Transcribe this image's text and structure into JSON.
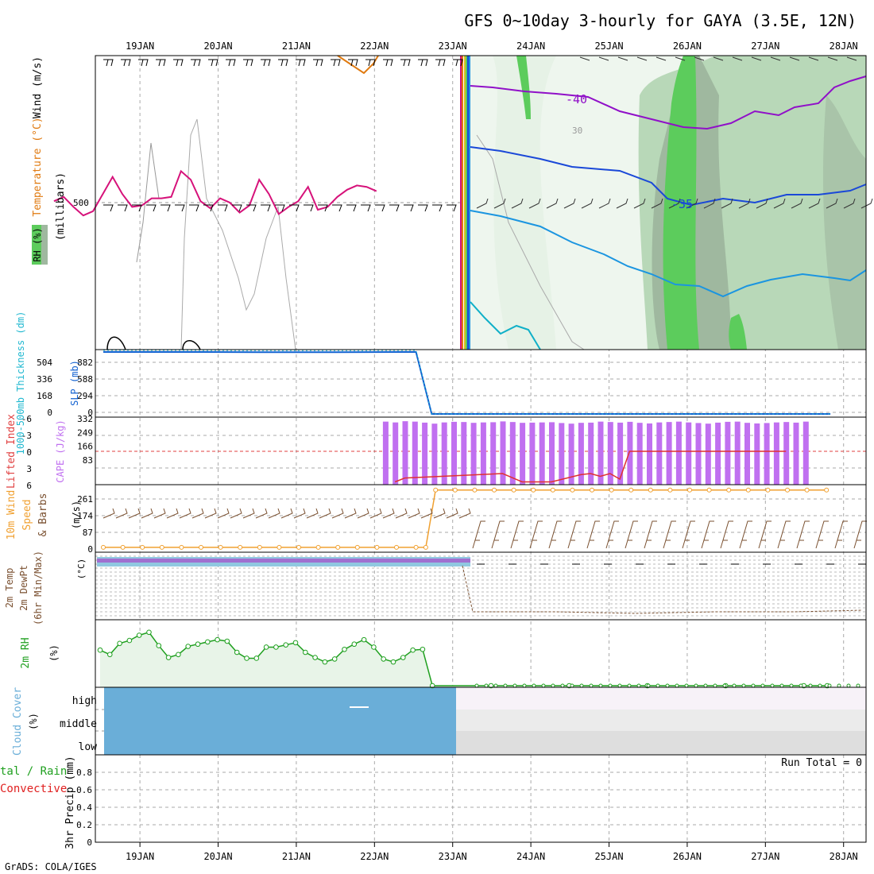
{
  "title": "GFS 0~10day 3-hourly for GAYA (3.5E, 12N)",
  "footer": "GrADS: COLA/IGES",
  "dates": [
    "19JAN",
    "20JAN",
    "21JAN",
    "22JAN",
    "23JAN",
    "24JAN",
    "25JAN",
    "26JAN",
    "27JAN",
    "28JAN"
  ],
  "colors": {
    "temp_orange": "#e07a10",
    "temp_magenta": "#d6127a",
    "temp_purple": "#9010c8",
    "temp_blue": "#1a48d8",
    "temp_lightblue": "#1b95e0",
    "temp_cyan": "#10b0c8",
    "rh_light": "#e6f2e6",
    "rh_mid": "#b8d8b8",
    "rh_dark": "#9fb89f",
    "rh_green": "#5ccc5c",
    "cape": "#c070f0",
    "slp": "#1060d0",
    "thickness": "#20b8d0",
    "wind_speed": "#f0a030",
    "rh2m": "#20a020",
    "cloud": "#6aaed8",
    "precip_total": "#000000",
    "precip_conv": "#e02020"
  },
  "chart_data": [
    {
      "panel": "upper-air",
      "type": "line",
      "ylabel_parts": [
        "RH (%)",
        "Temperature (°C)",
        "Wind (m/s)",
        "(millibars)"
      ],
      "ytick": "500",
      "contour_labels": [
        "-40",
        "-35",
        "30"
      ],
      "series": [
        {
          "name": "Temperature 500mb",
          "values_note": "magenta",
          "x": [
            0,
            0.125,
            0.25,
            0.375,
            0.5,
            0.625,
            0.75,
            0.875,
            1,
            1.125,
            1.25,
            1.375,
            1.5,
            1.625,
            1.75,
            1.875,
            2,
            2.125,
            2.25,
            2.375,
            2.5,
            2.625,
            2.75,
            2.875,
            3,
            3.125,
            3.25,
            3.375,
            3.5,
            3.625,
            3.75,
            3.875,
            4,
            4.125
          ],
          "values": [
            -6.5,
            -6.2,
            -6.9,
            -7.5,
            -7.2,
            -6.0,
            -4.8,
            -6.0,
            -6.9,
            -6.8,
            -6.3,
            -6.3,
            -6.2,
            -4.4,
            -5.0,
            -6.5,
            -7.0,
            -6.3,
            -6.6,
            -7.3,
            -6.8,
            -5.0,
            -6.0,
            -7.4,
            -6.9,
            -6.5,
            -5.5,
            -7.1,
            -6.9,
            -6.2,
            -5.7,
            -5.4,
            -5.5,
            -5.8
          ]
        }
      ]
    },
    {
      "panel": "slp-thickness",
      "type": "line",
      "ylabel_left": "1000-500mb Thickness (dm)",
      "ylabel_right": "SLP (mb)",
      "ticks_left": [
        "504",
        "336",
        "168",
        "0"
      ],
      "ticks_right": [
        "882",
        "588",
        "294",
        "0"
      ],
      "series": [
        {
          "name": "SLP",
          "x": [
            0,
            1,
            2,
            3,
            4,
            4.2,
            5,
            6,
            7,
            8,
            9,
            9.3
          ],
          "values": [
            1000,
            1000,
            998,
            998,
            1000,
            0,
            0,
            0,
            0,
            0,
            0,
            0
          ]
        },
        {
          "name": "Thickness",
          "x": [
            0,
            1,
            2,
            3,
            4,
            4.2,
            5,
            6,
            7,
            8,
            9,
            9.3
          ],
          "values": [
            572,
            572,
            570,
            570,
            572,
            0,
            0,
            0,
            0,
            0,
            0,
            0
          ]
        }
      ]
    },
    {
      "panel": "cape-li",
      "type": "bar",
      "ylabel_left": "Lifted Index",
      "ylabel_right": "CAPE (J/kg)",
      "ticks_left": [
        "-6",
        "-3",
        "0",
        "3",
        "6"
      ],
      "ticks_right": [
        "332",
        "249",
        "166",
        "83"
      ],
      "series": [
        {
          "name": "CAPE",
          "x_start": 4.125,
          "x_step": 0.125,
          "values": [
            310,
            306,
            312,
            310,
            305,
            300,
            306,
            309,
            308,
            304,
            306,
            307,
            311,
            308,
            304,
            305,
            306,
            307,
            303,
            300,
            304,
            305,
            310,
            308,
            305,
            309,
            304,
            301,
            306,
            308,
            310,
            306,
            303,
            300,
            305,
            309,
            310,
            304,
            301,
            303,
            306,
            308,
            305,
            310
          ]
        },
        {
          "name": "Lifted Index",
          "x": [
            4.25,
            4.375,
            5.625,
            5.875,
            6.125,
            6.25,
            6.625,
            6.75,
            6.875,
            7.0,
            7.125,
            7.25,
            7.375,
            7.5,
            7.625,
            7.75,
            7.875,
            8.0,
            8.125,
            8.25,
            8.375,
            8.5,
            8.625,
            8.75,
            8.875,
            9.0,
            9.125,
            9.25
          ],
          "values": [
            5.5,
            4.8,
            4.0,
            5.5,
            5.5,
            5.5,
            4.2,
            4.0,
            4.5,
            4.0,
            5.0,
            0.0,
            0.0,
            0.0,
            0.0,
            0.0,
            0.0,
            0.0,
            0.0,
            0.0,
            0.0,
            0.0,
            0.0,
            0.0,
            0.0,
            0.0,
            0.0,
            0.0
          ]
        }
      ]
    },
    {
      "panel": "wind10m",
      "type": "line",
      "ylabel_left": "10m Wind Speed & Barbs",
      "ylabel_right": "(m/s)",
      "ticks_right": [
        "261",
        "174",
        "87",
        "0"
      ],
      "series": [
        {
          "name": "10m Wind Speed",
          "x": [
            0,
            0.25,
            0.5,
            0.75,
            1,
            1.25,
            1.5,
            1.75,
            2,
            2.25,
            2.5,
            2.75,
            3,
            3.25,
            3.5,
            3.75,
            4,
            4.125,
            4.25,
            4.5,
            4.75,
            5,
            5.25,
            5.5,
            5.75,
            6,
            6.25,
            6.5,
            6.75,
            7,
            7.25,
            7.5,
            7.75,
            8,
            8.25,
            8.5,
            8.75,
            9,
            9.25
          ],
          "values": [
            4,
            4,
            4,
            4,
            4,
            4,
            4,
            4,
            4,
            4,
            4,
            4,
            4,
            4,
            4,
            4,
            4,
            4,
            255,
            255,
            255,
            255,
            255,
            255,
            255,
            255,
            255,
            255,
            255,
            255,
            255,
            255,
            255,
            255,
            255,
            255,
            255,
            255,
            255
          ]
        }
      ]
    },
    {
      "panel": "temp2m",
      "type": "line",
      "ylabel_left": "2m Temp 2m DewPt (6hr Min/Max)",
      "ylabel_right": "(°C)",
      "series": []
    },
    {
      "panel": "rh2m",
      "type": "area",
      "ylabel_left": "2m RH",
      "ylabel_right": "(%)",
      "series": [
        {
          "name": "2m RH",
          "x": [
            0,
            0.125,
            0.25,
            0.375,
            0.5,
            0.625,
            0.75,
            0.875,
            1,
            1.125,
            1.25,
            1.375,
            1.5,
            1.625,
            1.75,
            1.875,
            2,
            2.125,
            2.25,
            2.375,
            2.5,
            2.625,
            2.75,
            2.875,
            3,
            3.125,
            3.25,
            3.375,
            3.5,
            3.625,
            3.75,
            3.875,
            4,
            4.125,
            4.25,
            5,
            6,
            7,
            8,
            9,
            9.3
          ],
          "values": [
            48,
            42,
            57,
            61,
            68,
            72,
            54,
            38,
            42,
            53,
            56,
            59,
            62,
            60,
            45,
            37,
            37,
            52,
            52,
            55,
            58,
            45,
            38,
            32,
            36,
            49,
            56,
            62,
            52,
            36,
            32,
            38,
            48,
            49,
            0,
            0,
            0,
            0,
            0,
            0,
            0
          ]
        }
      ]
    },
    {
      "panel": "cloud",
      "type": "area",
      "ylabel_left": "Cloud Cover",
      "ylabel_right": "(%)",
      "levels": [
        "high",
        "middle",
        "low"
      ]
    },
    {
      "panel": "precip",
      "type": "bar",
      "ylabel_left": "Total / Rain Convective",
      "ylabel_right": "3hr Precip (mm)",
      "ticks": [
        "0.8",
        "0.6",
        "0.4",
        "0.2",
        "0"
      ],
      "run_total": "Run Total = 0",
      "ylim": [
        0,
        1
      ]
    }
  ]
}
